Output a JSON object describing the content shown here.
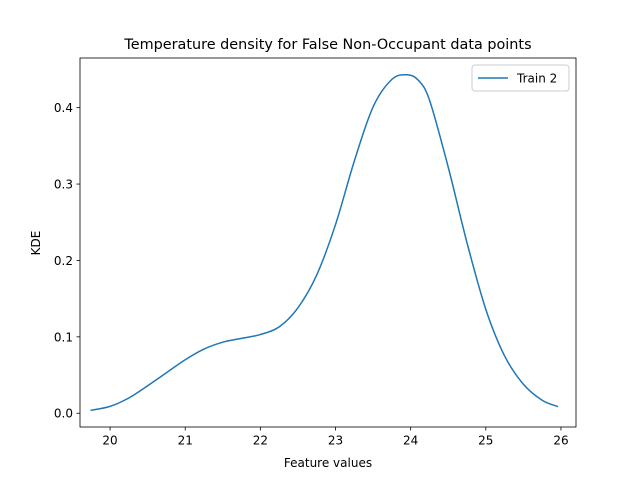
{
  "chart_data": {
    "type": "line",
    "title": "Temperature density for False Non-Occupant data points",
    "xlabel": "Feature values",
    "ylabel": "KDE",
    "xlim": [
      19.6,
      26.2
    ],
    "ylim": [
      -0.018,
      0.465
    ],
    "xticks": [
      20,
      21,
      22,
      23,
      24,
      25,
      26
    ],
    "yticks": [
      0.0,
      0.1,
      0.2,
      0.3,
      0.4
    ],
    "ytick_labels": [
      "0.0",
      "0.1",
      "0.2",
      "0.3",
      "0.4"
    ],
    "grid": false,
    "legend_position": "top-right",
    "series": [
      {
        "name": "Train 2",
        "color": "#1f77b4",
        "x": [
          19.75,
          20.0,
          20.25,
          20.5,
          20.75,
          21.0,
          21.25,
          21.5,
          21.75,
          22.0,
          22.25,
          22.5,
          22.75,
          23.0,
          23.25,
          23.5,
          23.75,
          23.95,
          24.1,
          24.25,
          24.5,
          24.75,
          25.0,
          25.25,
          25.5,
          25.75,
          25.95
        ],
        "y": [
          0.004,
          0.009,
          0.02,
          0.036,
          0.053,
          0.07,
          0.084,
          0.093,
          0.098,
          0.103,
          0.113,
          0.138,
          0.181,
          0.247,
          0.33,
          0.401,
          0.437,
          0.443,
          0.436,
          0.41,
          0.322,
          0.223,
          0.136,
          0.075,
          0.038,
          0.017,
          0.009
        ]
      }
    ]
  }
}
